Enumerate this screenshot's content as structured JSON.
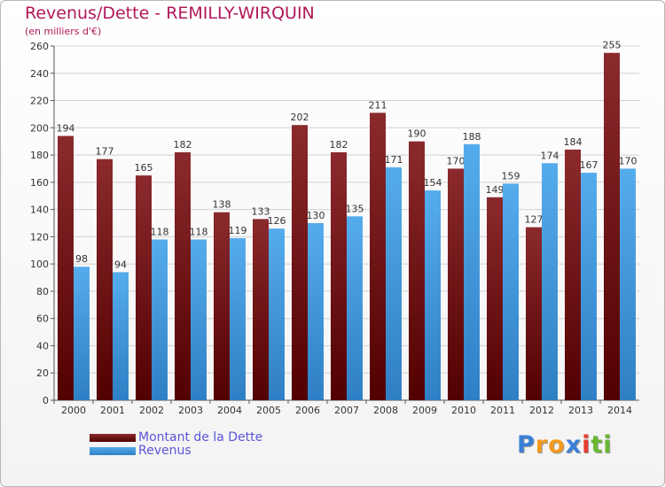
{
  "chart_data": {
    "type": "bar",
    "title": "Revenus/Dette - REMILLY-WIRQUIN",
    "subtitle": "(en milliers d'€)",
    "categories": [
      "2000",
      "2001",
      "2002",
      "2003",
      "2004",
      "2005",
      "2006",
      "2007",
      "2008",
      "2009",
      "2010",
      "2011",
      "2012",
      "2013",
      "2014"
    ],
    "series": [
      {
        "name": "Montant de la Dette",
        "color": "#7d1f22",
        "values": [
          194,
          177,
          165,
          182,
          138,
          133,
          202,
          182,
          211,
          190,
          170,
          149,
          127,
          184,
          255
        ]
      },
      {
        "name": "Revenus",
        "color": "#4da3e3",
        "values": [
          98,
          94,
          118,
          118,
          119,
          126,
          130,
          135,
          171,
          154,
          188,
          159,
          174,
          167,
          170
        ]
      }
    ],
    "ylim": [
      0,
      260
    ],
    "ytick_step": 20,
    "xlabel": "",
    "ylabel": "",
    "grid": true,
    "legend_position": "bottom-left"
  },
  "brand": {
    "letters": [
      "P",
      "r",
      "o",
      "x",
      "i",
      "t",
      "i"
    ],
    "colors": [
      "#3a7ed8",
      "#f39a1e",
      "#f39a1e",
      "#3a7ed8",
      "#e63b2e",
      "#68b82f",
      "#68b82f"
    ]
  }
}
